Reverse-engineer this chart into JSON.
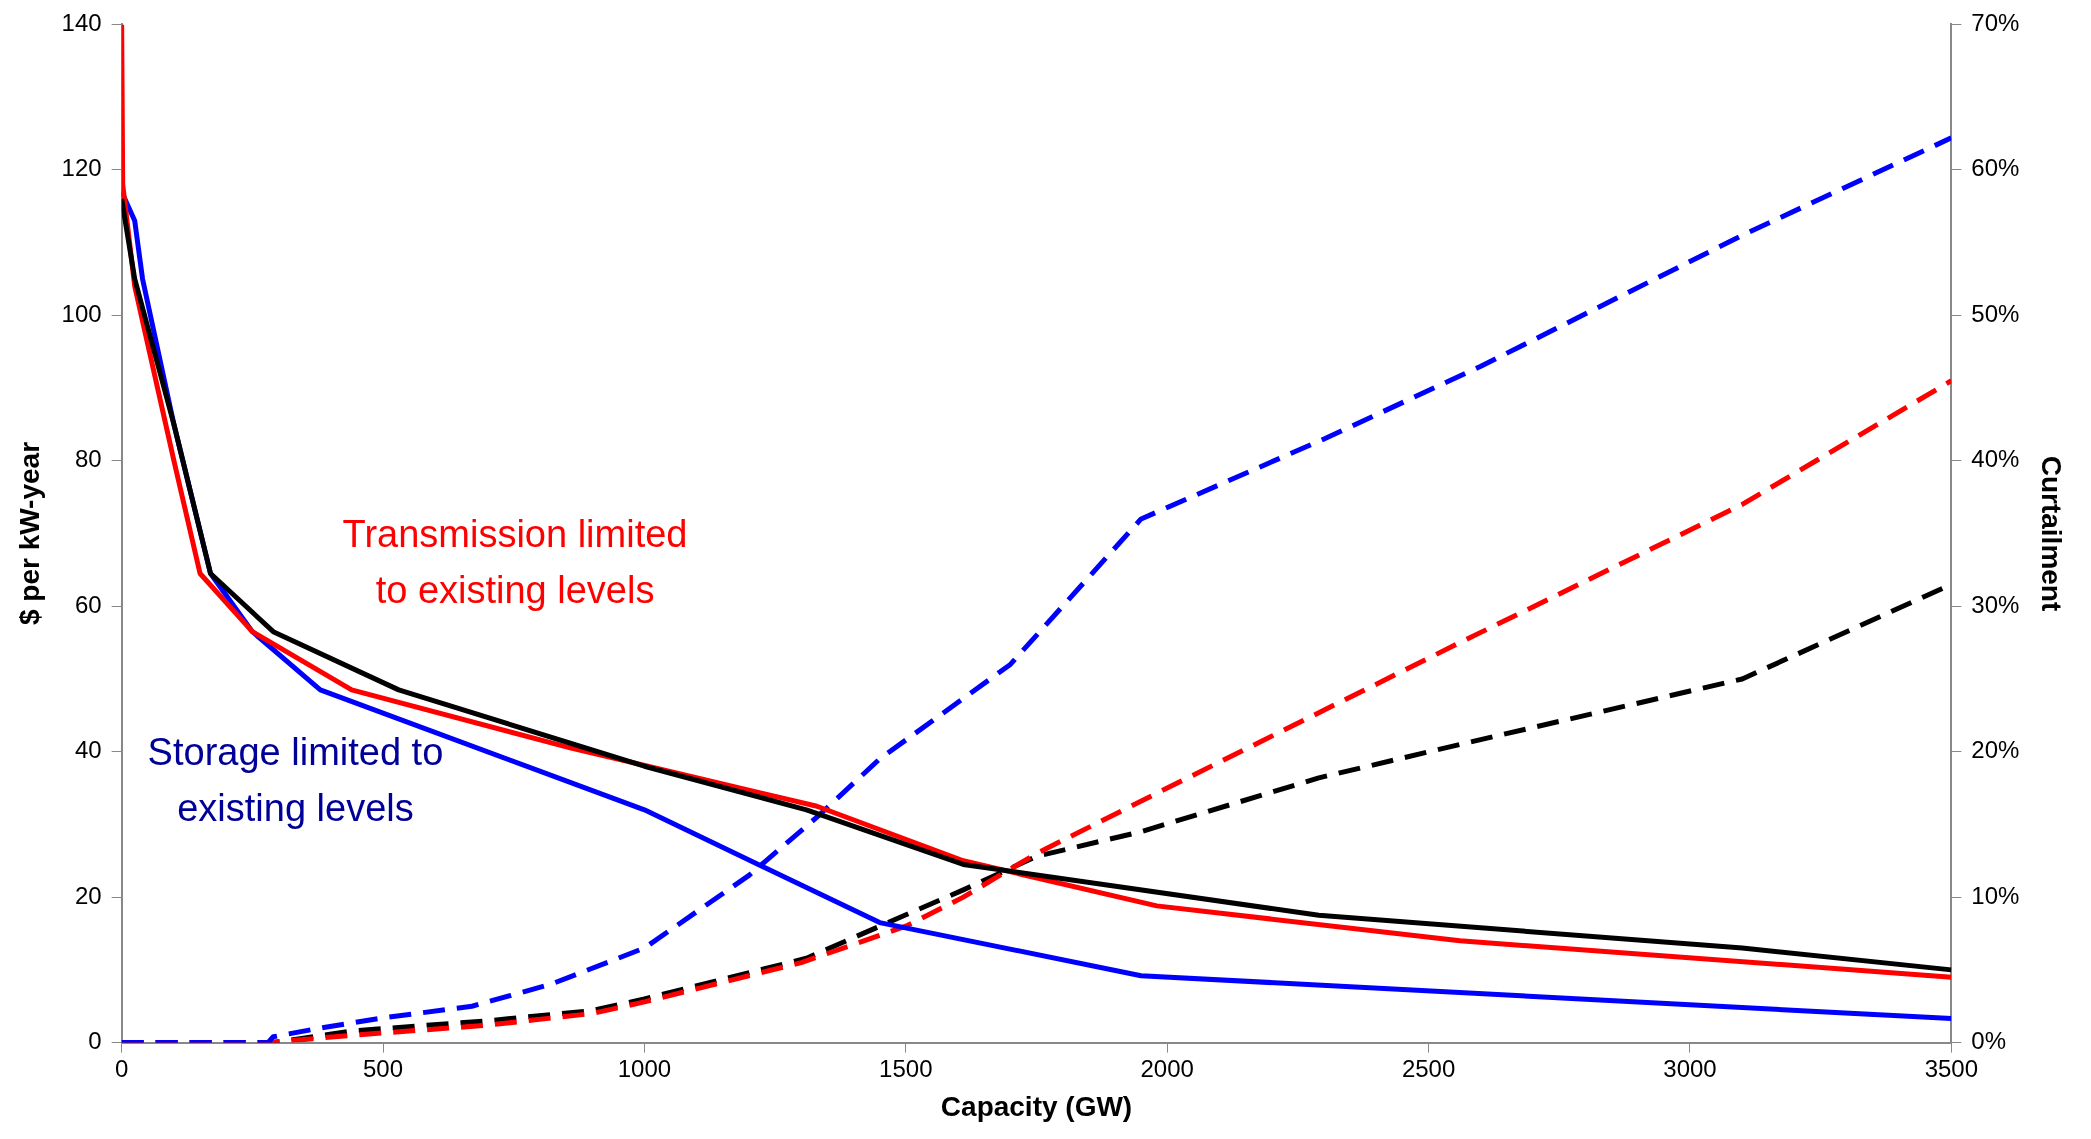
{
  "chart_data": {
    "type": "line",
    "xlabel": "Capacity (GW)",
    "ylabel": "$ per kW-year",
    "y2label": "Curtailment",
    "annotations": [
      "Transmission limited to existing levels",
      "Storage limited to existing levels"
    ],
    "xlim": [
      0,
      3500
    ],
    "xticks": [
      0,
      500,
      1000,
      1500,
      2000,
      2500,
      3000,
      3500
    ],
    "ylim": [
      0,
      140
    ],
    "yticks": [
      0,
      20,
      40,
      60,
      80,
      100,
      120,
      140
    ],
    "y2lim": [
      0,
      70
    ],
    "y2ticks": [
      {
        "value": 0,
        "label": "0%"
      },
      {
        "value": 10,
        "label": "10%"
      },
      {
        "value": 20,
        "label": "20%"
      },
      {
        "value": 30,
        "label": "30%"
      },
      {
        "value": 40,
        "label": "40%"
      },
      {
        "value": 50,
        "label": "50%"
      },
      {
        "value": 60,
        "label": "60%"
      },
      {
        "value": 70,
        "label": "70%"
      }
    ],
    "grid": false,
    "legend": false,
    "marker": "none",
    "series": [
      {
        "color": "#000000",
        "line_style": "solid",
        "x": [
          0,
          25,
          100,
          170,
          290,
          530,
          1000,
          1310,
          1610,
          2290,
          3100,
          3500
        ],
        "values": [
          116,
          105,
          85,
          64.5,
          56.5,
          48.5,
          38,
          32,
          24.5,
          17.5,
          13,
          10
        ]
      },
      {
        "color": "#ff0000",
        "line_style": "solid",
        "x": [
          0,
          2,
          25,
          75,
          100,
          150,
          250,
          440,
          860,
          1330,
          1610,
          1980,
          2560,
          3500
        ],
        "values": [
          140,
          118,
          104,
          88,
          80,
          64.5,
          56.5,
          48.5,
          40.5,
          32.5,
          25,
          18.8,
          14,
          9
        ]
      },
      {
        "color": "#0000ff",
        "line_style": "solid",
        "x": [
          0,
          25,
          40,
          100,
          170,
          250,
          380,
          1000,
          1450,
          1950,
          3500
        ],
        "values": [
          117,
          113,
          105,
          85,
          64.5,
          56.5,
          48.5,
          32,
          16.5,
          9.2,
          3.3
        ]
      },
      {
        "color": "#0000ff",
        "line_style": "dashed",
        "axis": "y2",
        "x": [
          0,
          280,
          290,
          380,
          500,
          670,
          820,
          1000,
          1200,
          1330,
          1450,
          1700,
          1950,
          2300,
          2600,
          3100,
          3500
        ],
        "values": [
          0,
          0,
          0.4,
          1,
          1.7,
          2.5,
          4,
          6.5,
          11.5,
          15.5,
          19.5,
          26,
          36,
          41.5,
          46.5,
          55.5,
          62.2
        ]
      },
      {
        "color": "#ff0000",
        "line_style": "dashed",
        "axis": "y2",
        "x": [
          0,
          280,
          440,
          700,
          900,
          1000,
          1300,
          1500,
          1610,
          1750,
          2000,
          2560,
          3100,
          3500
        ],
        "values": [
          0,
          0,
          0.5,
          1.2,
          2,
          2.8,
          5.5,
          8,
          10,
          13,
          17.5,
          27.5,
          37,
          45.5
        ]
      },
      {
        "color": "#000000",
        "line_style": "dashed",
        "axis": "y2",
        "x": [
          0,
          290,
          440,
          700,
          900,
          1000,
          1310,
          1450,
          1610,
          1750,
          1950,
          2290,
          2560,
          3100,
          3500
        ],
        "values": [
          0,
          0,
          0.8,
          1.5,
          2.2,
          3,
          5.8,
          8,
          10.5,
          12.8,
          14.5,
          18.2,
          20.5,
          25,
          31.5
        ]
      }
    ]
  }
}
